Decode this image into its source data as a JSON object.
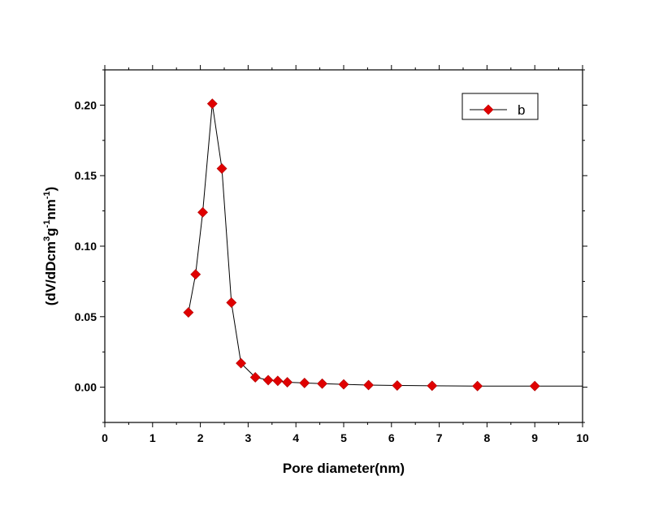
{
  "chart_data": {
    "type": "line",
    "title": "",
    "xlabel": "Pore diameter(nm)",
    "ylabel_parts": {
      "t1": "(dV/dDcm",
      "s1": "3",
      "t2": "g",
      "s2": "-1",
      "t3": "nm",
      "s3": "-1",
      "t4": ")"
    },
    "xlim": [
      0,
      10
    ],
    "ylim": [
      -0.025,
      0.225
    ],
    "x_ticks": [
      0,
      1,
      2,
      3,
      4,
      5,
      6,
      7,
      8,
      9,
      10
    ],
    "x_tick_labels": [
      "0",
      "1",
      "2",
      "3",
      "4",
      "5",
      "6",
      "7",
      "8",
      "9",
      "10"
    ],
    "y_ticks": [
      0.0,
      0.05,
      0.1,
      0.15,
      0.2
    ],
    "y_tick_labels": [
      "0.00",
      "0.05",
      "0.10",
      "0.15",
      "0.20"
    ],
    "grid": false,
    "legend_position": "top-right",
    "series": [
      {
        "name": "b",
        "color": "#e00000",
        "line_color": "#000000",
        "marker": "diamond",
        "x": [
          1.75,
          1.9,
          2.05,
          2.25,
          2.45,
          2.65,
          2.85,
          3.15,
          3.42,
          3.62,
          3.82,
          4.18,
          4.55,
          5.0,
          5.52,
          6.12,
          6.85,
          7.8,
          9.0
        ],
        "y": [
          0.053,
          0.08,
          0.124,
          0.201,
          0.155,
          0.06,
          0.017,
          0.007,
          0.005,
          0.0045,
          0.0035,
          0.003,
          0.0025,
          0.002,
          0.0015,
          0.0012,
          0.001,
          0.0008,
          0.0008
        ],
        "trail_x": 10.0,
        "trail_y": 0.0008
      }
    ]
  }
}
